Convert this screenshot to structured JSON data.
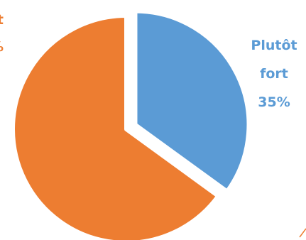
{
  "chart_data": {
    "type": "pie",
    "title": "",
    "slices": [
      {
        "label_lines": [
          "Plutôt",
          "fort",
          "35%"
        ],
        "value": 35,
        "color": "#5b9bd5"
      },
      {
        "label_lines": [
          "rt",
          "%"
        ],
        "value": 65,
        "color": "#ed7d31"
      }
    ],
    "start_angle_deg": 0,
    "direction": "clockwise",
    "exploded": true,
    "legend": "none"
  }
}
